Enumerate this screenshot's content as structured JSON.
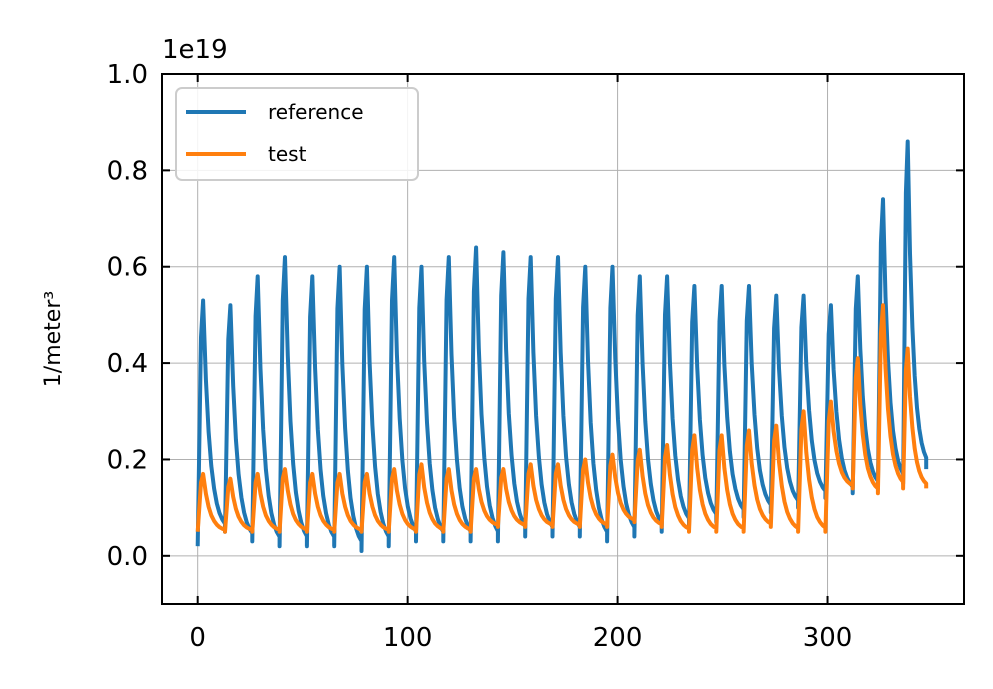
{
  "chart_data": {
    "type": "line",
    "title": "",
    "xlabel": "",
    "ylabel": "1/meter³",
    "y_offset_text": "1e19",
    "xlim": [
      -17,
      365
    ],
    "ylim": [
      -0.1,
      1.0
    ],
    "xticks": [
      0,
      100,
      200,
      300
    ],
    "xtick_labels": [
      "0",
      "100",
      "200",
      "300"
    ],
    "yticks": [
      0.0,
      0.2,
      0.4,
      0.6,
      0.8,
      1.0
    ],
    "ytick_labels": [
      "0.0",
      "0.2",
      "0.4",
      "0.6",
      "0.8",
      "1.0"
    ],
    "grid": true,
    "legend_position": "top-left",
    "series": [
      {
        "name": "reference",
        "color": "#1f77b4",
        "cycle_starts": [
          0,
          13,
          26,
          39,
          52,
          65,
          78,
          91,
          104,
          117,
          130,
          143,
          156,
          169,
          182,
          195,
          208,
          221,
          234,
          247,
          260,
          273,
          286,
          299,
          312,
          324,
          336
        ],
        "cycle_peaks": [
          0.53,
          0.52,
          0.58,
          0.62,
          0.58,
          0.6,
          0.6,
          0.62,
          0.6,
          0.62,
          0.64,
          0.63,
          0.62,
          0.62,
          0.6,
          0.6,
          0.58,
          0.58,
          0.56,
          0.56,
          0.56,
          0.54,
          0.54,
          0.52,
          0.58,
          0.74,
          0.86
        ],
        "cycle_lows": [
          0.02,
          0.05,
          0.03,
          0.02,
          0.02,
          0.02,
          0.01,
          0.02,
          0.03,
          0.03,
          0.03,
          0.03,
          0.04,
          0.04,
          0.04,
          0.03,
          0.04,
          0.05,
          0.06,
          0.07,
          0.08,
          0.09,
          0.1,
          0.12,
          0.13,
          0.14,
          0.15
        ],
        "end": [
          347,
          0.18
        ]
      },
      {
        "name": "test",
        "color": "#ff7f0e",
        "cycle_starts": [
          0,
          13,
          26,
          39,
          52,
          65,
          78,
          91,
          104,
          117,
          130,
          143,
          156,
          169,
          182,
          195,
          208,
          221,
          234,
          247,
          260,
          273,
          286,
          299,
          312,
          324,
          336
        ],
        "cycle_peaks": [
          0.17,
          0.16,
          0.17,
          0.18,
          0.17,
          0.17,
          0.17,
          0.18,
          0.19,
          0.18,
          0.18,
          0.18,
          0.19,
          0.19,
          0.2,
          0.21,
          0.22,
          0.23,
          0.25,
          0.25,
          0.26,
          0.27,
          0.3,
          0.32,
          0.41,
          0.52,
          0.43
        ],
        "cycle_lows": [
          0.05,
          0.05,
          0.05,
          0.05,
          0.05,
          0.05,
          0.05,
          0.05,
          0.05,
          0.05,
          0.05,
          0.06,
          0.06,
          0.06,
          0.06,
          0.06,
          0.07,
          0.06,
          0.05,
          0.05,
          0.05,
          0.06,
          0.05,
          0.05,
          0.14,
          0.13,
          0.14
        ],
        "end": [
          347,
          0.14
        ]
      }
    ]
  }
}
